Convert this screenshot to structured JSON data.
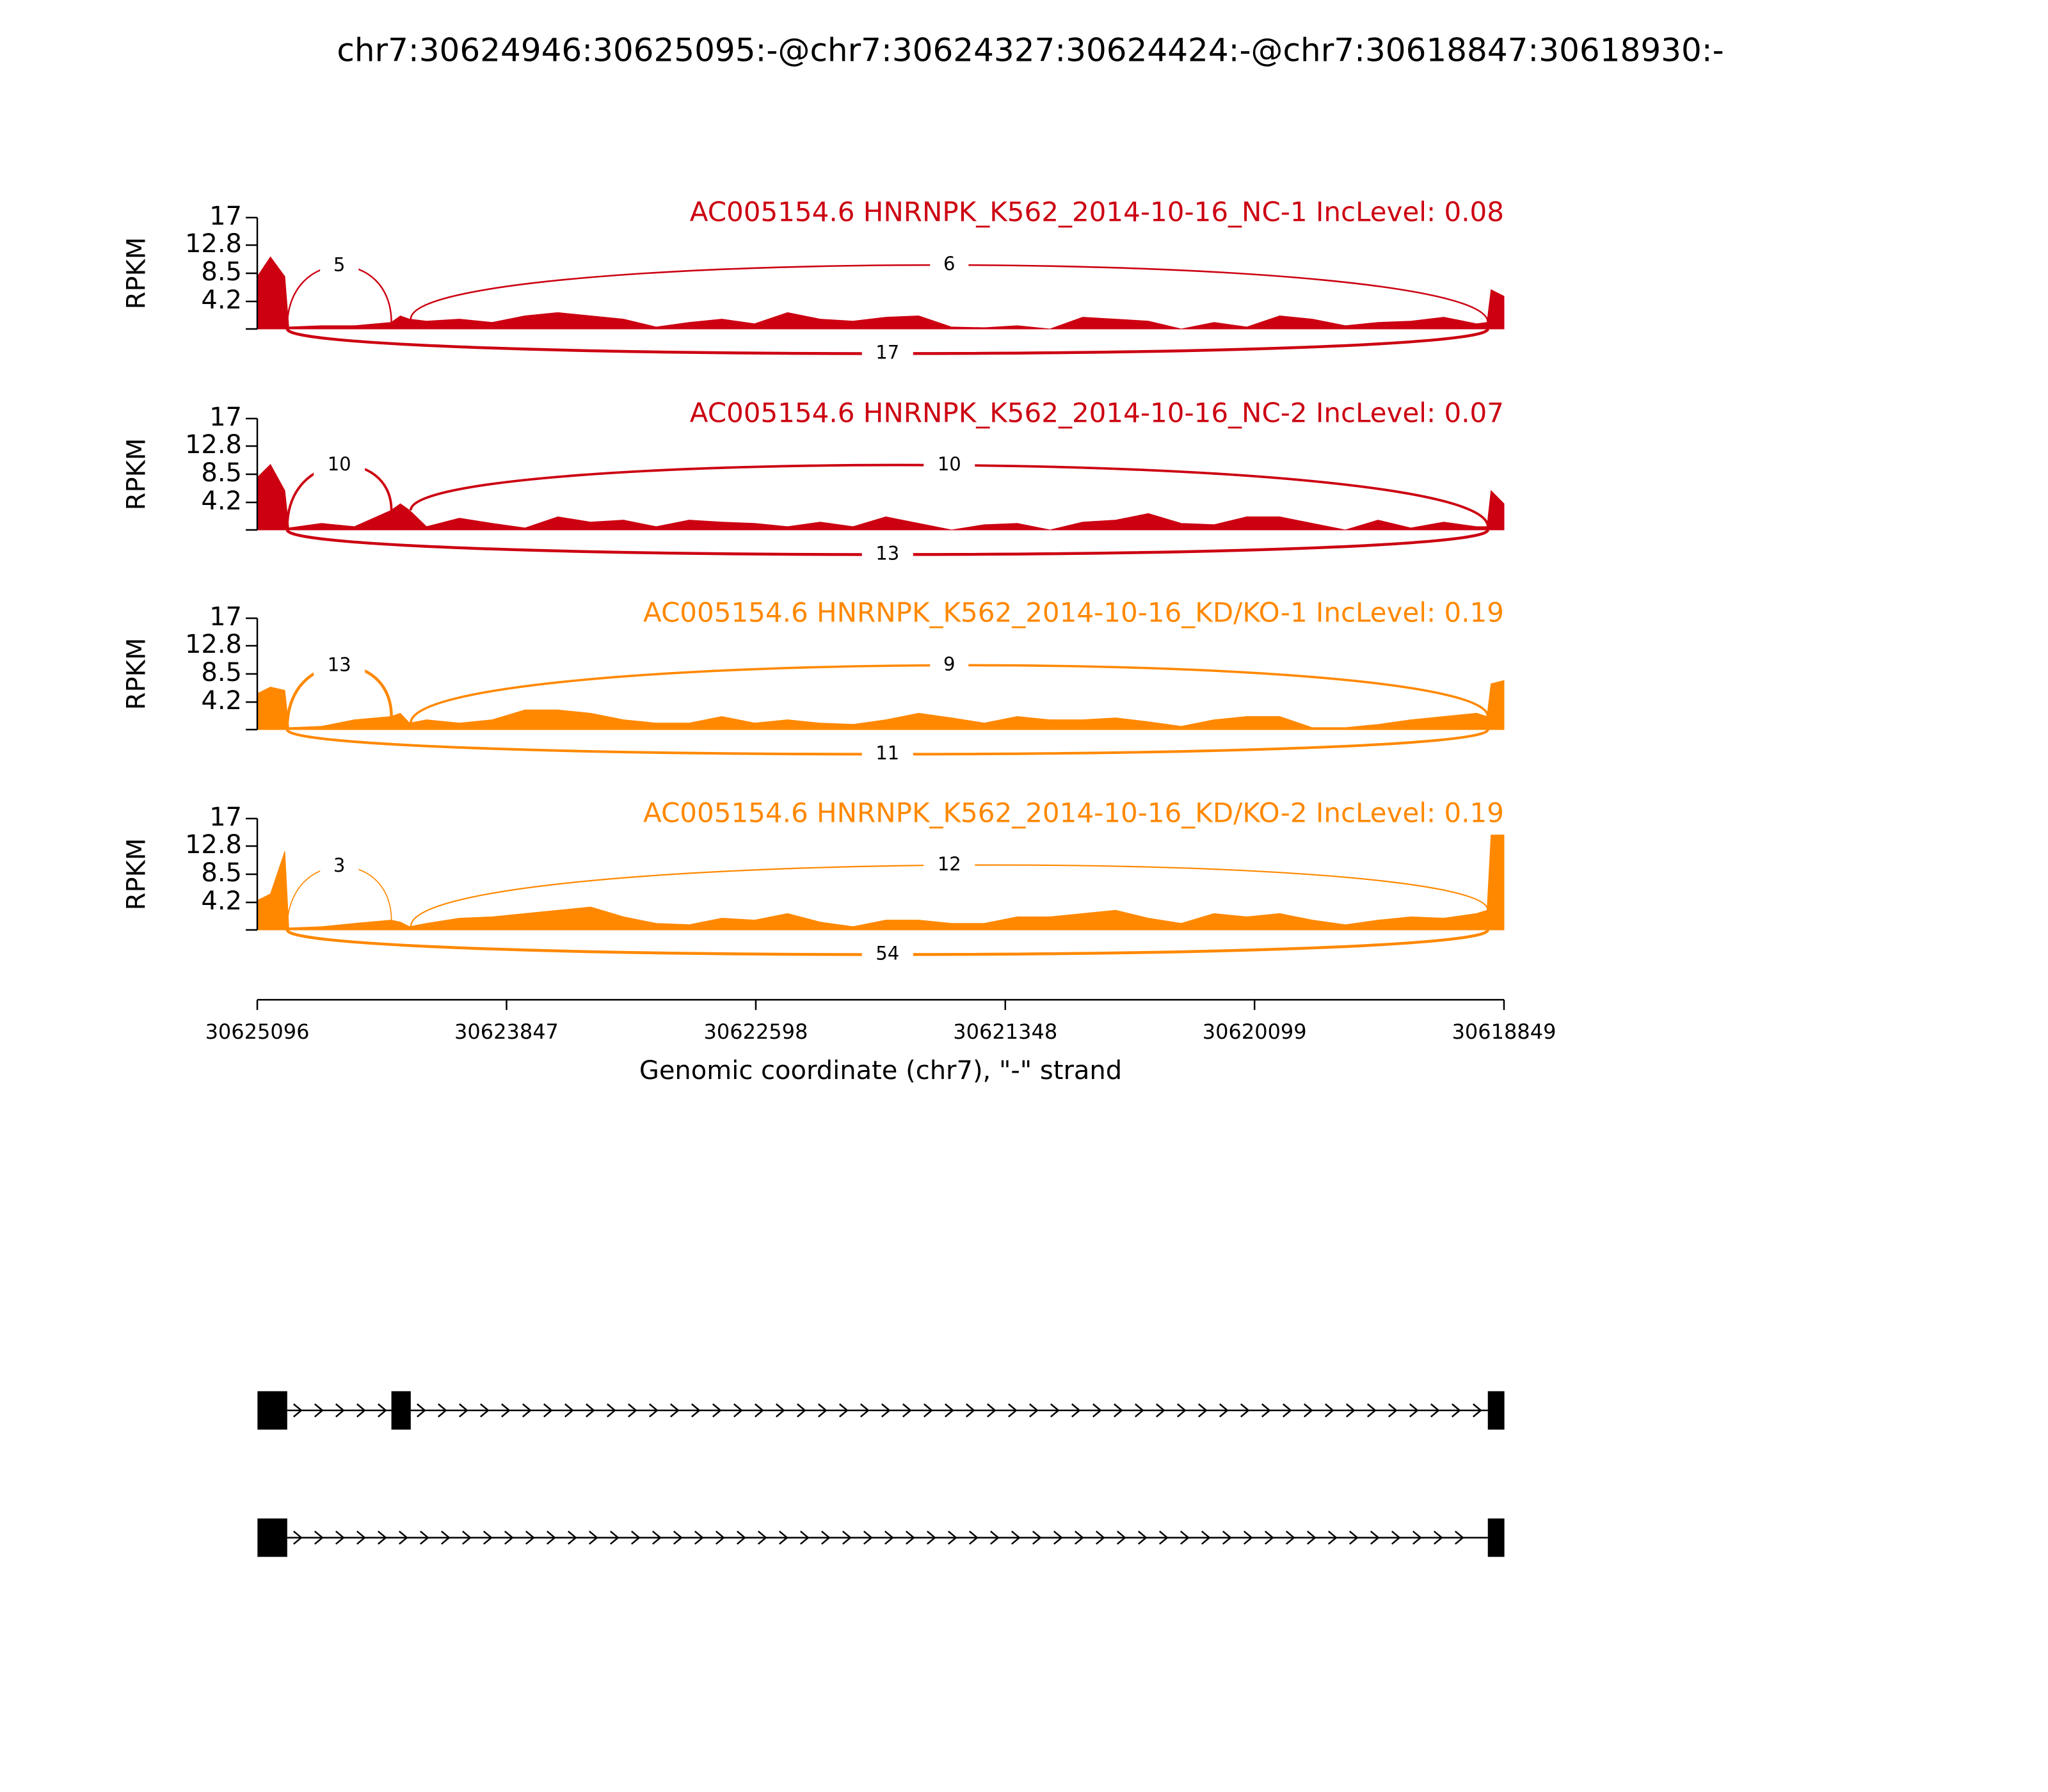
{
  "title": "chr7:30624946:30625095:-@chr7:30624327:30624424:-@chr7:30618847:30618930:-",
  "chart_data": [
    {
      "type": "area",
      "title": "AC005154.6 HNRNPK_K562_2014-10-16_NC-1 IncLevel: 0.08",
      "ylabel": "RPKM",
      "color": "#cc0011",
      "ylim": [
        0,
        17
      ],
      "yticks": [
        4.2,
        8.5,
        12.8,
        17
      ],
      "xlim": [
        30625096,
        30618849
      ],
      "x": [
        30625096,
        30625030,
        30624958,
        30624938,
        30624774,
        30624609,
        30624425,
        30624379,
        30624333,
        30624248,
        30624083,
        30623919,
        30623755,
        30623590,
        30623426,
        30623261,
        30623097,
        30622932,
        30622768,
        30622604,
        30622439,
        30622275,
        30622111,
        30621946,
        30621782,
        30621617,
        30621453,
        30621288,
        30621124,
        30620960,
        30620795,
        30620631,
        30620466,
        30620302,
        30620138,
        30619973,
        30619809,
        30619644,
        30619480,
        30619315,
        30619151,
        30618987,
        30618934,
        30618914,
        30618849
      ],
      "values": [
        8,
        11,
        8,
        0.3,
        0.5,
        0.5,
        1,
        2,
        1.5,
        1.2,
        1.5,
        1,
        2,
        2.5,
        2,
        1.5,
        0.3,
        1,
        1.5,
        0.8,
        2.5,
        1.5,
        1.2,
        1.8,
        2,
        0.3,
        0.2,
        0.5,
        0,
        1.8,
        1.5,
        1.2,
        0,
        1,
        0.3,
        2,
        1.5,
        0.5,
        1,
        1.2,
        1.8,
        0.8,
        1,
        6,
        5
      ],
      "junctions": [
        {
          "start": 30624946,
          "end": 30624424,
          "count": 5,
          "side": "above"
        },
        {
          "start": 30624327,
          "end": 30618930,
          "count": 6,
          "side": "above"
        },
        {
          "start": 30624946,
          "end": 30618930,
          "count": 17,
          "side": "below"
        }
      ]
    },
    {
      "type": "area",
      "title": "AC005154.6 HNRNPK_K562_2014-10-16_NC-2 IncLevel: 0.07",
      "ylabel": "RPKM",
      "color": "#cc0011",
      "ylim": [
        0,
        17
      ],
      "yticks": [
        4.2,
        8.5,
        12.8,
        17
      ],
      "xlim": [
        30625096,
        30618849
      ],
      "x": [
        30625096,
        30625030,
        30624958,
        30624938,
        30624774,
        30624609,
        30624425,
        30624379,
        30624333,
        30624248,
        30624083,
        30623919,
        30623755,
        30623590,
        30623426,
        30623261,
        30623097,
        30622932,
        30622768,
        30622604,
        30622439,
        30622275,
        30622111,
        30621946,
        30621782,
        30621617,
        30621453,
        30621288,
        30621124,
        30620960,
        30620795,
        30620631,
        30620466,
        30620302,
        30620138,
        30619973,
        30619809,
        30619644,
        30619480,
        30619315,
        30619151,
        30618987,
        30618934,
        30618914,
        30618849
      ],
      "values": [
        8,
        10,
        6,
        0.3,
        1,
        0.5,
        3,
        4,
        3,
        0.5,
        1.8,
        1,
        0.3,
        2,
        1.2,
        1.5,
        0.5,
        1.5,
        1.2,
        1,
        0.5,
        1.2,
        0.5,
        2,
        1,
        0,
        0.8,
        1,
        0,
        1.2,
        1.5,
        2.5,
        1,
        0.8,
        2,
        2,
        1,
        0,
        1.5,
        0.3,
        1.2,
        0.5,
        0.5,
        6,
        4
      ],
      "junctions": [
        {
          "start": 30624946,
          "end": 30624424,
          "count": 10,
          "side": "above"
        },
        {
          "start": 30624327,
          "end": 30618930,
          "count": 10,
          "side": "above"
        },
        {
          "start": 30624946,
          "end": 30618930,
          "count": 13,
          "side": "below"
        }
      ]
    },
    {
      "type": "area",
      "title": "AC005154.6 HNRNPK_K562_2014-10-16_KD/KO-1 IncLevel: 0.19",
      "ylabel": "RPKM",
      "color": "#ff8800",
      "ylim": [
        0,
        17
      ],
      "yticks": [
        4.2,
        8.5,
        12.8,
        17
      ],
      "xlim": [
        30625096,
        30618849
      ],
      "x": [
        30625096,
        30625030,
        30624958,
        30624938,
        30624774,
        30624609,
        30624425,
        30624379,
        30624333,
        30624248,
        30624083,
        30623919,
        30623755,
        30623590,
        30623426,
        30623261,
        30623097,
        30622932,
        30622768,
        30622604,
        30622439,
        30622275,
        30622111,
        30621946,
        30621782,
        30621617,
        30621453,
        30621288,
        30621124,
        30620960,
        30620795,
        30620631,
        30620466,
        30620302,
        30620138,
        30619973,
        30619809,
        30619644,
        30619480,
        30619315,
        30619151,
        30618987,
        30618934,
        30618914,
        30618849
      ],
      "values": [
        5.5,
        6.5,
        6,
        0.3,
        0.5,
        1.5,
        2,
        2.5,
        1,
        1.5,
        1,
        1.5,
        3,
        3,
        2.5,
        1.5,
        1,
        1,
        2,
        1,
        1.5,
        1,
        0.8,
        1.5,
        2.5,
        1.8,
        1,
        2,
        1.5,
        1.5,
        1.8,
        1.2,
        0.5,
        1.5,
        2,
        2,
        0.3,
        0.3,
        0.8,
        1.5,
        2,
        2.5,
        2,
        7,
        7.5
      ],
      "junctions": [
        {
          "start": 30624946,
          "end": 30624424,
          "count": 13,
          "side": "above"
        },
        {
          "start": 30624327,
          "end": 30618930,
          "count": 9,
          "side": "above"
        },
        {
          "start": 30624946,
          "end": 30618930,
          "count": 11,
          "side": "below"
        }
      ]
    },
    {
      "type": "area",
      "title": "AC005154.6 HNRNPK_K562_2014-10-16_KD/KO-2 IncLevel: 0.19",
      "ylabel": "RPKM",
      "color": "#ff8800",
      "ylim": [
        0,
        17
      ],
      "yticks": [
        4.2,
        8.5,
        12.8,
        17
      ],
      "xlim": [
        30625096,
        30618849
      ],
      "xticks": [
        30625096,
        30623847,
        30622598,
        30621348,
        30620099,
        30618849
      ],
      "xlabel": "Genomic coordinate (chr7), \"-\" strand",
      "x": [
        30625096,
        30625030,
        30624958,
        30624938,
        30624774,
        30624609,
        30624425,
        30624379,
        30624333,
        30624248,
        30624083,
        30623919,
        30623755,
        30623590,
        30623426,
        30623261,
        30623097,
        30622932,
        30622768,
        30622604,
        30622439,
        30622275,
        30622111,
        30621946,
        30621782,
        30621617,
        30621453,
        30621288,
        30621124,
        30620960,
        30620795,
        30620631,
        30620466,
        30620302,
        30620138,
        30619973,
        30619809,
        30619644,
        30619480,
        30619315,
        30619151,
        30618987,
        30618934,
        30618914,
        30618849
      ],
      "values": [
        4.5,
        5.5,
        12,
        0.3,
        0.5,
        1,
        1.5,
        1.2,
        0.5,
        1,
        1.8,
        2,
        2.5,
        3,
        3.5,
        2,
        1,
        0.8,
        1.8,
        1.5,
        2.5,
        1.2,
        0.5,
        1.5,
        1.5,
        1,
        1,
        2,
        2,
        2.5,
        3,
        1.8,
        1,
        2.5,
        2,
        2.5,
        1.5,
        0.8,
        1.5,
        2,
        1.8,
        2.5,
        3,
        14.5,
        14.5
      ],
      "junctions": [
        {
          "start": 30624946,
          "end": 30624424,
          "count": 3,
          "side": "above"
        },
        {
          "start": 30624327,
          "end": 30618930,
          "count": 12,
          "side": "above"
        },
        {
          "start": 30624946,
          "end": 30618930,
          "count": 54,
          "side": "below"
        }
      ]
    }
  ],
  "gene_model": {
    "transcripts": [
      {
        "exons": [
          [
            30625095,
            30624946
          ],
          [
            30624424,
            30624327
          ],
          [
            30618930,
            30618847
          ]
        ]
      },
      {
        "exons": [
          [
            30625095,
            30624946
          ],
          [
            30618930,
            30618847
          ]
        ]
      }
    ]
  }
}
